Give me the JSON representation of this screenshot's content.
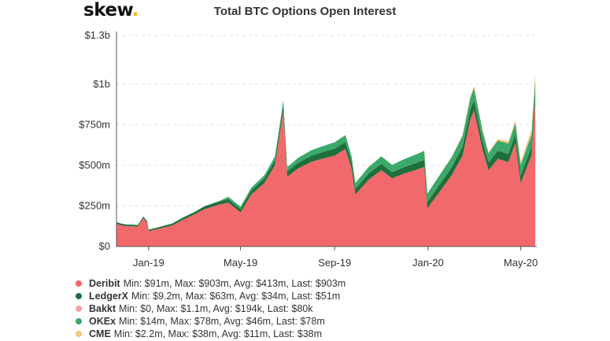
{
  "brand": {
    "name": "skew",
    "dot": "."
  },
  "chart_data": {
    "type": "area",
    "stacked": true,
    "title": "Total BTC Options Open Interest",
    "xlabel": "",
    "ylabel": "",
    "ylim": [
      0,
      1300
    ],
    "y_unit": "$m",
    "y_ticks": [
      {
        "value": 0,
        "label": "$0"
      },
      {
        "value": 250,
        "label": "$250m"
      },
      {
        "value": 500,
        "label": "$500m"
      },
      {
        "value": 750,
        "label": "$750m"
      },
      {
        "value": 1000,
        "label": "$1b"
      },
      {
        "value": 1300,
        "label": "$1.3b"
      }
    ],
    "xlim": [
      "2018-11-20",
      "2020-05-22"
    ],
    "x_ticks": [
      {
        "date": "2019-01-01",
        "label": "Jan-19"
      },
      {
        "date": "2019-05-01",
        "label": "May-19"
      },
      {
        "date": "2019-09-01",
        "label": "Sep-19"
      },
      {
        "date": "2020-01-01",
        "label": "Jan-20"
      },
      {
        "date": "2020-05-01",
        "label": "May-20"
      }
    ],
    "grid": true,
    "legend_position": "bottom-left",
    "x": [
      "2018-11-20",
      "2018-11-27",
      "2018-12-04",
      "2018-12-11",
      "2018-12-18",
      "2018-12-25",
      "2018-12-30",
      "2019-01-01",
      "2019-01-15",
      "2019-02-01",
      "2019-02-15",
      "2019-03-01",
      "2019-03-15",
      "2019-04-01",
      "2019-04-15",
      "2019-05-01",
      "2019-05-15",
      "2019-06-01",
      "2019-06-15",
      "2019-06-26",
      "2019-07-01",
      "2019-07-15",
      "2019-08-01",
      "2019-08-15",
      "2019-09-01",
      "2019-09-15",
      "2019-09-23",
      "2019-09-28",
      "2019-10-15",
      "2019-11-01",
      "2019-11-15",
      "2019-12-01",
      "2019-12-15",
      "2019-12-27",
      "2019-12-31",
      "2020-01-15",
      "2020-02-01",
      "2020-02-15",
      "2020-02-25",
      "2020-03-01",
      "2020-03-12",
      "2020-03-20",
      "2020-04-01",
      "2020-04-15",
      "2020-04-24",
      "2020-05-01",
      "2020-05-10",
      "2020-05-15",
      "2020-05-20"
    ],
    "series": [
      {
        "name": "Deribit",
        "color": "#f2696b",
        "summary": "Min: $91m, Max: $903m, Avg: $413m, Last: $903m",
        "values": [
          140,
          130,
          125,
          125,
          122,
          175,
          145,
          95,
          110,
          130,
          165,
          195,
          230,
          255,
          270,
          210,
          320,
          390,
          500,
          835,
          430,
          480,
          520,
          540,
          560,
          600,
          480,
          320,
          410,
          470,
          420,
          450,
          470,
          490,
          235,
          330,
          440,
          560,
          780,
          840,
          600,
          470,
          540,
          520,
          640,
          390,
          500,
          560,
          903
        ]
      },
      {
        "name": "LedgerX",
        "color": "#1f6f3c",
        "summary": "Min: $9.2m, Max: $63m, Avg: $34m, Last: $51m",
        "values": [
          10,
          10,
          10,
          10,
          10,
          10,
          10,
          9,
          10,
          12,
          14,
          15,
          18,
          20,
          22,
          20,
          24,
          28,
          30,
          35,
          32,
          35,
          38,
          40,
          42,
          44,
          40,
          36,
          38,
          40,
          38,
          40,
          42,
          44,
          40,
          46,
          50,
          55,
          60,
          62,
          55,
          48,
          50,
          50,
          52,
          48,
          50,
          51,
          51
        ]
      },
      {
        "name": "Bakkt",
        "color": "#f4a0a4",
        "summary": "Min: $0, Max: $1.1m, Avg: $194k, Last: $80k",
        "values": [
          0,
          0,
          0,
          0,
          0,
          0,
          0,
          0,
          0,
          0,
          0,
          0,
          0,
          0,
          0,
          0,
          0,
          0,
          0,
          0,
          0,
          0,
          0,
          0,
          0,
          0,
          0,
          0,
          0.1,
          0.2,
          0.3,
          0.4,
          0.5,
          0.6,
          0.5,
          0.6,
          0.7,
          0.8,
          1.0,
          1.1,
          0.6,
          0.4,
          0.3,
          0.2,
          0.2,
          0.1,
          0.1,
          0.1,
          0.08
        ]
      },
      {
        "name": "OKEx",
        "color": "#3aa96a",
        "summary": "Min: $14m, Max: $78m, Avg: $46m, Last: $78m",
        "values": [
          0,
          0,
          0,
          0,
          0,
          0,
          0,
          0,
          0,
          0,
          0,
          0,
          0,
          0,
          14,
          16,
          18,
          20,
          24,
          30,
          26,
          30,
          34,
          36,
          40,
          42,
          38,
          35,
          40,
          45,
          44,
          48,
          52,
          55,
          50,
          55,
          60,
          66,
          72,
          75,
          60,
          55,
          62,
          64,
          70,
          66,
          72,
          75,
          78
        ]
      },
      {
        "name": "CME",
        "color": "#f6c77a",
        "summary": "Min: $2.2m, Max: $38m, Avg: $11m, Last: $38m",
        "values": [
          0,
          0,
          0,
          0,
          0,
          0,
          0,
          0,
          0,
          0,
          0,
          0,
          0,
          0,
          0,
          0,
          0,
          0,
          0,
          0,
          0,
          0,
          0,
          0,
          0,
          0,
          0,
          0,
          0,
          0,
          0,
          0,
          0,
          0,
          0,
          2.2,
          4,
          6,
          8,
          10,
          9,
          8,
          10,
          12,
          14,
          16,
          24,
          30,
          38
        ]
      }
    ]
  }
}
